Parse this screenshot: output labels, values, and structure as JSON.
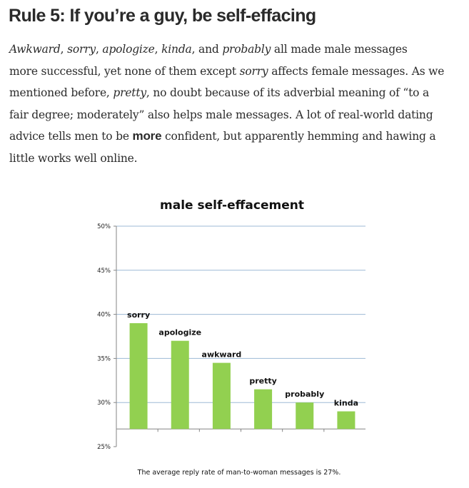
{
  "article": {
    "heading": "Rule 5: If you’re a guy, be self-effacing",
    "paragraph_lines": [
      [
        {
          "t": "Awkward",
          "s": "it"
        },
        {
          "t": ", ",
          "s": ""
        },
        {
          "t": "sorry",
          "s": "it"
        },
        {
          "t": ", ",
          "s": ""
        },
        {
          "t": "apologize",
          "s": "it"
        },
        {
          "t": ", ",
          "s": ""
        },
        {
          "t": "kinda",
          "s": "it"
        },
        {
          "t": ", and ",
          "s": ""
        },
        {
          "t": "probably",
          "s": "it"
        },
        {
          "t": " all made male messages",
          "s": ""
        }
      ],
      [
        {
          "t": "more successful, yet none of them except ",
          "s": ""
        },
        {
          "t": "sorry",
          "s": "it"
        },
        {
          "t": " affects female messages. As we",
          "s": ""
        }
      ],
      [
        {
          "t": "mentioned before, ",
          "s": ""
        },
        {
          "t": "pretty",
          "s": "it"
        },
        {
          "t": ", no doubt because of its adverbial meaning of “to a",
          "s": ""
        }
      ],
      [
        {
          "t": "fair degree; moderately” also helps male messages. A lot of real-world dating",
          "s": ""
        }
      ],
      [
        {
          "t": "advice tells men to be ",
          "s": ""
        },
        {
          "t": "more",
          "s": "bd"
        },
        {
          "t": " confident, but apparently hemming and hawing a",
          "s": ""
        }
      ],
      [
        {
          "t": "little works well online.",
          "s": ""
        }
      ]
    ]
  },
  "chart_data": {
    "type": "bar",
    "title": "male self-effacement",
    "categories": [
      "sorry",
      "apologize",
      "awkward",
      "pretty",
      "probably",
      "kinda"
    ],
    "values": [
      39,
      37,
      34.5,
      31.5,
      30,
      29
    ],
    "value_unit": "%",
    "ylim": [
      25,
      50
    ],
    "baseline": 27,
    "yticks": [
      "25%",
      "30%",
      "35%",
      "40%",
      "45%",
      "50%"
    ],
    "ytick_values": [
      25,
      30,
      35,
      40,
      45,
      50
    ],
    "grid": true,
    "bar_color": "#92d050",
    "gridline_color": "#9db9d5",
    "axis_color": "#868686",
    "note": "The average reply rate of man-to-woman  messages is 27%."
  }
}
